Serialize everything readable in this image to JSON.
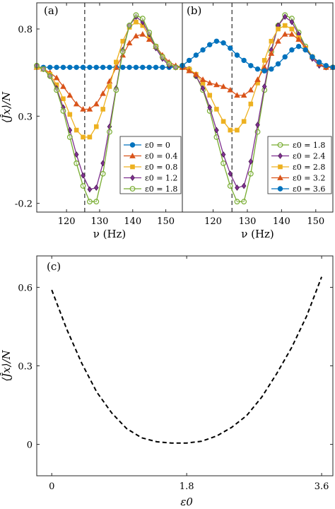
{
  "chart_data": [
    {
      "panel": "(a)",
      "type": "line",
      "xlabel": "ν (Hz)",
      "ylabel": "⟨Ĵx⟩/N",
      "xlim": [
        111,
        155
      ],
      "ylim": [
        -0.25,
        0.95
      ],
      "xticks": [
        120,
        130,
        140,
        150
      ],
      "yticks": [
        -0.2,
        0.3,
        0.8
      ],
      "xtick_labels": [
        "120",
        "130",
        "140",
        "150"
      ],
      "ytick_labels": [
        "-0.2",
        "0.3",
        "0.8"
      ],
      "vline_x": 125.5,
      "legend_position": "lower-right",
      "x": [
        111,
        113,
        115,
        117,
        119,
        121,
        123,
        125,
        127,
        129,
        131,
        133,
        135,
        137,
        139,
        141,
        143,
        145,
        147,
        149,
        151,
        153,
        155
      ],
      "series": [
        {
          "name": "ε0 = 0",
          "color": "#0072BD",
          "marker": "circle",
          "values": [
            0.58,
            0.58,
            0.58,
            0.58,
            0.58,
            0.58,
            0.58,
            0.58,
            0.58,
            0.58,
            0.58,
            0.58,
            0.58,
            0.58,
            0.58,
            0.58,
            0.58,
            0.58,
            0.58,
            0.58,
            0.58,
            0.58,
            0.58
          ]
        },
        {
          "name": "ε0 = 0.4",
          "color": "#D95319",
          "marker": "triangle",
          "values": [
            0.58,
            0.57,
            0.55,
            0.52,
            0.47,
            0.42,
            0.37,
            0.34,
            0.34,
            0.37,
            0.43,
            0.5,
            0.58,
            0.65,
            0.72,
            0.76,
            0.77,
            0.74,
            0.7,
            0.65,
            0.61,
            0.59,
            0.58
          ]
        },
        {
          "name": "ε0 = 0.8",
          "color": "#EDB120",
          "marker": "square",
          "values": [
            0.58,
            0.57,
            0.54,
            0.48,
            0.4,
            0.31,
            0.22,
            0.18,
            0.18,
            0.24,
            0.34,
            0.47,
            0.61,
            0.73,
            0.81,
            0.84,
            0.82,
            0.76,
            0.7,
            0.64,
            0.6,
            0.58,
            0.58
          ]
        },
        {
          "name": "ε0 = 1.2",
          "color": "#7E2F8E",
          "marker": "diamond",
          "values": [
            0.59,
            0.57,
            0.53,
            0.46,
            0.35,
            0.22,
            0.08,
            -0.04,
            -0.12,
            -0.11,
            0.03,
            0.24,
            0.46,
            0.68,
            0.82,
            0.87,
            0.84,
            0.77,
            0.69,
            0.63,
            0.59,
            0.58,
            0.58
          ]
        },
        {
          "name": "ε0 = 1.8",
          "color": "#77AC30",
          "marker": "circle-open",
          "values": [
            0.59,
            0.57,
            0.53,
            0.45,
            0.33,
            0.18,
            0.03,
            -0.1,
            -0.19,
            -0.19,
            -0.03,
            0.21,
            0.45,
            0.67,
            0.82,
            0.88,
            0.86,
            0.78,
            0.7,
            0.64,
            0.6,
            0.58,
            0.58
          ]
        }
      ]
    },
    {
      "panel": "(b)",
      "type": "line",
      "xlabel": "ν (Hz)",
      "xlim": [
        111,
        155
      ],
      "ylim": [
        -0.25,
        0.95
      ],
      "xticks": [
        120,
        130,
        140,
        150
      ],
      "xtick_labels": [
        "120",
        "130",
        "140",
        "150"
      ],
      "vline_x": 125.5,
      "legend_position": "lower-right",
      "x": [
        111,
        113,
        115,
        117,
        119,
        121,
        123,
        125,
        127,
        129,
        131,
        133,
        135,
        137,
        139,
        141,
        143,
        145,
        147,
        149,
        151,
        153,
        155
      ],
      "series": [
        {
          "name": "ε0 = 1.8",
          "color": "#77AC30",
          "marker": "circle-open",
          "values": [
            0.59,
            0.57,
            0.53,
            0.45,
            0.33,
            0.18,
            0.03,
            -0.1,
            -0.19,
            -0.19,
            -0.03,
            0.21,
            0.45,
            0.67,
            0.82,
            0.88,
            0.86,
            0.78,
            0.7,
            0.64,
            0.6,
            0.58,
            0.58
          ]
        },
        {
          "name": "ε0 = 2.4",
          "color": "#7E2F8E",
          "marker": "diamond",
          "values": [
            0.59,
            0.57,
            0.53,
            0.46,
            0.35,
            0.22,
            0.08,
            -0.03,
            -0.11,
            -0.1,
            0.04,
            0.25,
            0.47,
            0.68,
            0.82,
            0.87,
            0.84,
            0.77,
            0.69,
            0.63,
            0.59,
            0.58,
            0.58
          ]
        },
        {
          "name": "ε0 = 2.8",
          "color": "#EDB120",
          "marker": "square",
          "values": [
            0.58,
            0.57,
            0.54,
            0.49,
            0.42,
            0.34,
            0.27,
            0.22,
            0.22,
            0.27,
            0.37,
            0.49,
            0.62,
            0.73,
            0.8,
            0.82,
            0.8,
            0.75,
            0.69,
            0.64,
            0.6,
            0.58,
            0.58
          ]
        },
        {
          "name": "ε0 = 3.2",
          "color": "#D95319",
          "marker": "triangle",
          "values": [
            0.58,
            0.56,
            0.54,
            0.51,
            0.49,
            0.48,
            0.47,
            0.45,
            0.42,
            0.42,
            0.45,
            0.51,
            0.58,
            0.66,
            0.73,
            0.77,
            0.77,
            0.74,
            0.69,
            0.64,
            0.6,
            0.58,
            0.58
          ]
        },
        {
          "name": "ε0 = 3.6",
          "color": "#0072BD",
          "marker": "circle",
          "values": [
            0.59,
            0.62,
            0.65,
            0.68,
            0.71,
            0.73,
            0.72,
            0.69,
            0.65,
            0.62,
            0.59,
            0.57,
            0.56,
            0.57,
            0.6,
            0.64,
            0.68,
            0.7,
            0.68,
            0.64,
            0.61,
            0.59,
            0.58
          ]
        }
      ]
    },
    {
      "panel": "(c)",
      "type": "line",
      "xlabel": "ε0",
      "ylabel": "⟨Ĵx⟩/N",
      "xlim": [
        -0.2,
        3.75
      ],
      "ylim": [
        -0.12,
        0.72
      ],
      "xticks": [
        0,
        1.8,
        3.6
      ],
      "yticks": [
        0,
        0.3,
        0.6
      ],
      "xtick_labels": [
        "0",
        "1.8",
        "3.6"
      ],
      "ytick_labels": [
        "0",
        "0.3",
        "0.6"
      ],
      "series": [
        {
          "color": "#000000",
          "style": "dashed",
          "x": [
            0,
            0.2,
            0.4,
            0.6,
            0.8,
            1.0,
            1.2,
            1.4,
            1.6,
            1.8,
            2.0,
            2.2,
            2.4,
            2.6,
            2.8,
            3.0,
            3.2,
            3.4,
            3.6
          ],
          "values": [
            0.59,
            0.44,
            0.31,
            0.2,
            0.12,
            0.06,
            0.025,
            0.01,
            0.005,
            0.005,
            0.012,
            0.032,
            0.065,
            0.11,
            0.18,
            0.27,
            0.37,
            0.49,
            0.64
          ]
        }
      ]
    }
  ]
}
